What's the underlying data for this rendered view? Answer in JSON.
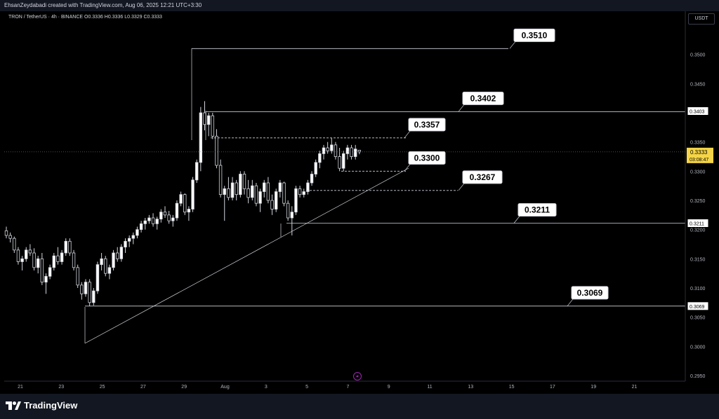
{
  "header": {
    "credit": "EhsanZeydabadi created with TradingView.com, Aug 06, 2025 12:21 UTC+3:30",
    "symbol_line": "TRON / TetherUS · 4h · BINANCE  O0.3336  H0.3336  L0.3329  C0.3333",
    "currency": "USDT"
  },
  "footer": {
    "brand": "TradingView"
  },
  "chart_data": {
    "type": "candlestick",
    "symbol": "TRON / TetherUS",
    "timeframe": "4h",
    "exchange": "BINANCE",
    "ohlc_last": {
      "open": 0.3336,
      "high": 0.3336,
      "low": 0.3329,
      "close": 0.3333
    },
    "ylim": [
      0.295,
      0.355
    ],
    "y_ticks": [
      "0.3500",
      "0.3450",
      "0.3400",
      "0.3350",
      "0.3300",
      "0.3250",
      "0.3200",
      "0.3150",
      "0.3100",
      "0.3050",
      "0.3000",
      "0.2950"
    ],
    "x_ticks": [
      "21",
      "23",
      "25",
      "27",
      "29",
      "Aug",
      "3",
      "5",
      "7",
      "9",
      "11",
      "13",
      "15",
      "17",
      "19",
      "21"
    ],
    "price_label": {
      "value": "0.3333",
      "countdown": "03:08:47"
    },
    "axis_markers": [
      "0.3403",
      "0.3211",
      "0.3069"
    ],
    "levels": [
      {
        "label": "0.3510",
        "value": 0.351,
        "style": "solid"
      },
      {
        "label": "0.3402",
        "value": 0.3402,
        "style": "solid"
      },
      {
        "label": "0.3357",
        "value": 0.3357,
        "style": "dashed"
      },
      {
        "label": "0.3300",
        "value": 0.33,
        "style": "dashed"
      },
      {
        "label": "0.3267",
        "value": 0.3267,
        "style": "dashed"
      },
      {
        "label": "0.3211",
        "value": 0.3211,
        "style": "solid"
      },
      {
        "label": "0.3069",
        "value": 0.3069,
        "style": "solid"
      }
    ],
    "candles": [
      [
        0.3198,
        0.3205,
        0.3185,
        0.319
      ],
      [
        0.319,
        0.3195,
        0.3178,
        0.3185
      ],
      [
        0.3185,
        0.3188,
        0.316,
        0.3165
      ],
      [
        0.3165,
        0.317,
        0.314,
        0.3145
      ],
      [
        0.3145,
        0.3155,
        0.313,
        0.315
      ],
      [
        0.315,
        0.317,
        0.3145,
        0.3165
      ],
      [
        0.3165,
        0.3175,
        0.3155,
        0.316
      ],
      [
        0.316,
        0.3168,
        0.313,
        0.3135
      ],
      [
        0.3135,
        0.3155,
        0.3125,
        0.315
      ],
      [
        0.315,
        0.316,
        0.3105,
        0.311
      ],
      [
        0.311,
        0.3125,
        0.309,
        0.312
      ],
      [
        0.312,
        0.314,
        0.3115,
        0.3135
      ],
      [
        0.3135,
        0.316,
        0.313,
        0.3155
      ],
      [
        0.3155,
        0.317,
        0.314,
        0.3145
      ],
      [
        0.3145,
        0.3165,
        0.314,
        0.316
      ],
      [
        0.316,
        0.3185,
        0.3155,
        0.318
      ],
      [
        0.318,
        0.3185,
        0.3155,
        0.316
      ],
      [
        0.316,
        0.3165,
        0.313,
        0.3135
      ],
      [
        0.3135,
        0.314,
        0.31,
        0.3105
      ],
      [
        0.3105,
        0.311,
        0.308,
        0.309
      ],
      [
        0.309,
        0.3115,
        0.3085,
        0.311
      ],
      [
        0.311,
        0.3115,
        0.3069,
        0.3075
      ],
      [
        0.3075,
        0.31,
        0.307,
        0.3095
      ],
      [
        0.3095,
        0.3145,
        0.309,
        0.314
      ],
      [
        0.314,
        0.316,
        0.313,
        0.315
      ],
      [
        0.315,
        0.3155,
        0.312,
        0.3125
      ],
      [
        0.3125,
        0.314,
        0.3115,
        0.3135
      ],
      [
        0.3135,
        0.3165,
        0.313,
        0.316
      ],
      [
        0.316,
        0.317,
        0.3145,
        0.315
      ],
      [
        0.315,
        0.3175,
        0.3145,
        0.317
      ],
      [
        0.317,
        0.3185,
        0.316,
        0.318
      ],
      [
        0.318,
        0.319,
        0.317,
        0.3185
      ],
      [
        0.3185,
        0.3195,
        0.3175,
        0.319
      ],
      [
        0.319,
        0.3205,
        0.3185,
        0.32
      ],
      [
        0.32,
        0.3215,
        0.3195,
        0.321
      ],
      [
        0.321,
        0.322,
        0.32,
        0.3215
      ],
      [
        0.3215,
        0.3225,
        0.321,
        0.322
      ],
      [
        0.322,
        0.3228,
        0.3205,
        0.321
      ],
      [
        0.321,
        0.3222,
        0.32,
        0.3218
      ],
      [
        0.3218,
        0.3235,
        0.3212,
        0.323
      ],
      [
        0.323,
        0.324,
        0.322,
        0.3225
      ],
      [
        0.3225,
        0.3232,
        0.321,
        0.3215
      ],
      [
        0.3215,
        0.3225,
        0.3205,
        0.322
      ],
      [
        0.322,
        0.325,
        0.3215,
        0.3245
      ],
      [
        0.3245,
        0.3265,
        0.324,
        0.326
      ],
      [
        0.326,
        0.3262,
        0.3225,
        0.323
      ],
      [
        0.323,
        0.324,
        0.3215,
        0.3235
      ],
      [
        0.3235,
        0.329,
        0.323,
        0.3285
      ],
      [
        0.3285,
        0.332,
        0.328,
        0.3315
      ],
      [
        0.3315,
        0.341,
        0.33,
        0.34
      ],
      [
        0.34,
        0.342,
        0.337,
        0.338
      ],
      [
        0.338,
        0.34,
        0.336,
        0.3395
      ],
      [
        0.3395,
        0.34,
        0.3355,
        0.336
      ],
      [
        0.336,
        0.3372,
        0.3305,
        0.331
      ],
      [
        0.331,
        0.332,
        0.3255,
        0.326
      ],
      [
        0.326,
        0.3275,
        0.3215,
        0.327
      ],
      [
        0.327,
        0.329,
        0.325,
        0.3255
      ],
      [
        0.3255,
        0.329,
        0.325,
        0.328
      ],
      [
        0.328,
        0.3285,
        0.325,
        0.326
      ],
      [
        0.326,
        0.33,
        0.3255,
        0.3295
      ],
      [
        0.3295,
        0.33,
        0.326,
        0.327
      ],
      [
        0.327,
        0.3285,
        0.3245,
        0.3255
      ],
      [
        0.3255,
        0.3285,
        0.325,
        0.3275
      ],
      [
        0.3275,
        0.328,
        0.324,
        0.3245
      ],
      [
        0.3245,
        0.327,
        0.323,
        0.3265
      ],
      [
        0.3265,
        0.3285,
        0.3255,
        0.328
      ],
      [
        0.328,
        0.329,
        0.3245,
        0.325
      ],
      [
        0.325,
        0.326,
        0.3225,
        0.3235
      ],
      [
        0.3235,
        0.327,
        0.323,
        0.3265
      ],
      [
        0.3265,
        0.3285,
        0.3255,
        0.328
      ],
      [
        0.328,
        0.3282,
        0.324,
        0.3245
      ],
      [
        0.3245,
        0.325,
        0.3215,
        0.322
      ],
      [
        0.322,
        0.324,
        0.319,
        0.323
      ],
      [
        0.323,
        0.3275,
        0.3225,
        0.327
      ],
      [
        0.327,
        0.3275,
        0.3255,
        0.326
      ],
      [
        0.326,
        0.327,
        0.3255,
        0.3265
      ],
      [
        0.3265,
        0.3285,
        0.326,
        0.328
      ],
      [
        0.328,
        0.33,
        0.3275,
        0.3295
      ],
      [
        0.3295,
        0.332,
        0.329,
        0.3315
      ],
      [
        0.3315,
        0.3335,
        0.3305,
        0.333
      ],
      [
        0.333,
        0.3345,
        0.332,
        0.334
      ],
      [
        0.334,
        0.335,
        0.333,
        0.3335
      ],
      [
        0.3335,
        0.3357,
        0.333,
        0.3345
      ],
      [
        0.3345,
        0.335,
        0.332,
        0.3325
      ],
      [
        0.3325,
        0.334,
        0.33,
        0.3305
      ],
      [
        0.3305,
        0.3335,
        0.33,
        0.333
      ],
      [
        0.333,
        0.3345,
        0.332,
        0.334
      ],
      [
        0.334,
        0.3345,
        0.332,
        0.3325
      ],
      [
        0.3325,
        0.3345,
        0.332,
        0.3338
      ],
      [
        0.3336,
        0.3336,
        0.3329,
        0.3333
      ]
    ]
  }
}
